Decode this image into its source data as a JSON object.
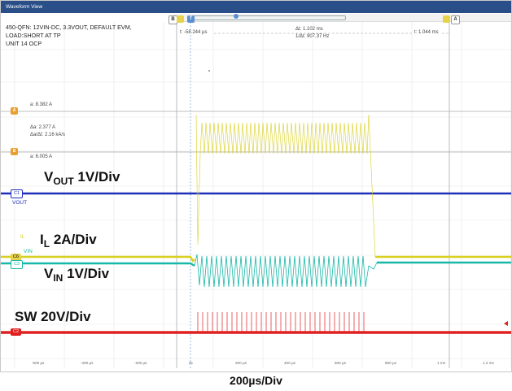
{
  "window": {
    "title": "Waveform View"
  },
  "description": "450-QFN: 12VIN-DC, 3.3VOUT, DEFAULT EVM,\nLOAD:SHORT AT TP\nUNIT 14 OCP",
  "cursors": {
    "t_label": "t: -58.244 µs",
    "dt_label": "Δt: 1.102 ms",
    "inv_dt_label": "1/Δt: 907.37 Hz",
    "t2_label": "t: 1.044 ms",
    "a_label": "a: 8.382 A",
    "da_label": "Δa: 2.377 A",
    "da_dt_label": "Δa/Δt: 2.16 kA/s",
    "b_label": "a: 6.005 A",
    "marker_b": "B",
    "marker_a": "A",
    "marker_t": "T"
  },
  "channels": {
    "c1": "C1",
    "c1_name": "VOUT",
    "c6": "C6",
    "c3": "C3",
    "c2": "C2",
    "il_name": "IL",
    "vin_name": "VIN"
  },
  "annotations": {
    "vout": "1V/Div",
    "vout_main": "V",
    "vout_sub": "OUT",
    "il_main": "I",
    "il_sub": "L",
    "il": "2A/Div",
    "vin_main": "V",
    "vin_sub": "IN",
    "vin": "1V/Div",
    "sw": "SW 20V/Div",
    "timebase": "200µs/Div"
  },
  "time_ticks": [
    "-600 µs",
    "-400 µs",
    "-200 µs",
    "0s",
    "200 µs",
    "400 µs",
    "600 µs",
    "800 µs",
    "1 ms",
    "1.2 ms"
  ],
  "colors": {
    "vout": "#1d2fb8",
    "il": "#d8d020",
    "vin": "#18b8a8",
    "sw": "#e02020",
    "cursor": "#e8a030",
    "titlebar": "#2a4f88"
  }
}
